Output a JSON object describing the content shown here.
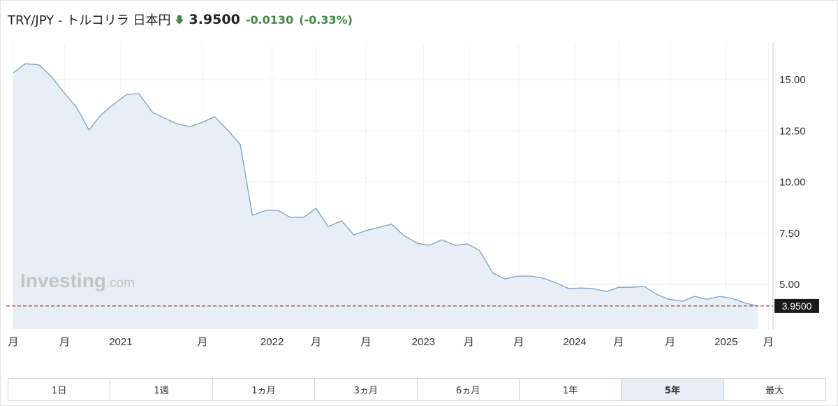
{
  "header": {
    "symbol": "TRY/JPY - トルコリラ 日本円",
    "price": "3.9500",
    "change": "-0.0130",
    "change_pct": "(-0.33%)"
  },
  "chart_data": {
    "type": "area",
    "color": "#7e9fc2",
    "fill": "#e7eef6",
    "x": [
      2020.29,
      2020.37,
      2020.46,
      2020.54,
      2020.62,
      2020.71,
      2020.79,
      2020.87,
      2020.96,
      2021.04,
      2021.12,
      2021.21,
      2021.29,
      2021.37,
      2021.46,
      2021.54,
      2021.62,
      2021.71,
      2021.79,
      2021.87,
      2021.96,
      2022.04,
      2022.12,
      2022.21,
      2022.29,
      2022.37,
      2022.46,
      2022.54,
      2022.62,
      2022.71,
      2022.79,
      2022.87,
      2022.96,
      2023.04,
      2023.12,
      2023.21,
      2023.29,
      2023.37,
      2023.46,
      2023.54,
      2023.62,
      2023.71,
      2023.79,
      2023.87,
      2023.96,
      2024.04,
      2024.12,
      2024.21,
      2024.29,
      2024.37,
      2024.46,
      2024.54,
      2024.62,
      2024.71,
      2024.79,
      2024.87,
      2024.96,
      2025.04,
      2025.12,
      2025.21
    ],
    "values": [
      15.34,
      15.78,
      15.72,
      15.17,
      14.42,
      13.63,
      12.54,
      13.29,
      13.84,
      14.28,
      14.32,
      13.4,
      13.12,
      12.85,
      12.71,
      12.92,
      13.19,
      12.51,
      11.83,
      8.38,
      8.62,
      8.62,
      8.28,
      8.28,
      8.72,
      7.83,
      8.11,
      7.42,
      7.63,
      7.8,
      7.94,
      7.39,
      7.01,
      6.91,
      7.18,
      6.91,
      6.98,
      6.67,
      5.55,
      5.27,
      5.41,
      5.41,
      5.31,
      5.1,
      4.8,
      4.83,
      4.8,
      4.66,
      4.86,
      4.86,
      4.9,
      4.52,
      4.28,
      4.18,
      4.42,
      4.28,
      4.42,
      4.32,
      4.11,
      3.95
    ],
    "xlim": [
      2020.29,
      2025.31
    ],
    "xticks": [
      {
        "value": 2020.29,
        "label": "月"
      },
      {
        "value": 2020.63,
        "label": "月"
      },
      {
        "value": 2021.0,
        "label": "2021"
      },
      {
        "value": 2021.54,
        "label": "月"
      },
      {
        "value": 2022.0,
        "label": "2022"
      },
      {
        "value": 2022.29,
        "label": "月"
      },
      {
        "value": 2022.62,
        "label": "月"
      },
      {
        "value": 2023.0,
        "label": "2023"
      },
      {
        "value": 2023.3,
        "label": "月"
      },
      {
        "value": 2023.63,
        "label": "月"
      },
      {
        "value": 2024.0,
        "label": "2024"
      },
      {
        "value": 2024.29,
        "label": "月"
      },
      {
        "value": 2024.63,
        "label": "月"
      },
      {
        "value": 2025.0,
        "label": "2025"
      },
      {
        "value": 2025.28,
        "label": "月"
      }
    ],
    "ylim": [
      2.82,
      16.81
    ],
    "yticks": [
      {
        "value": 5,
        "label": "5.00"
      },
      {
        "value": 7.5,
        "label": "7.50"
      },
      {
        "value": 10,
        "label": "10.00"
      },
      {
        "value": 12.5,
        "label": "12.50"
      },
      {
        "value": 15,
        "label": "15.00"
      }
    ],
    "last_price": {
      "value": 3.95,
      "label": "3.9500"
    },
    "grid": true,
    "watermark": {
      "brand": "Investing",
      "suffix": ".com"
    }
  },
  "ranges": {
    "labels": [
      "1日",
      "1週",
      "1ヵ月",
      "3ヵ月",
      "6ヵ月",
      "1年",
      "5年",
      "最大"
    ],
    "selected": 6
  }
}
